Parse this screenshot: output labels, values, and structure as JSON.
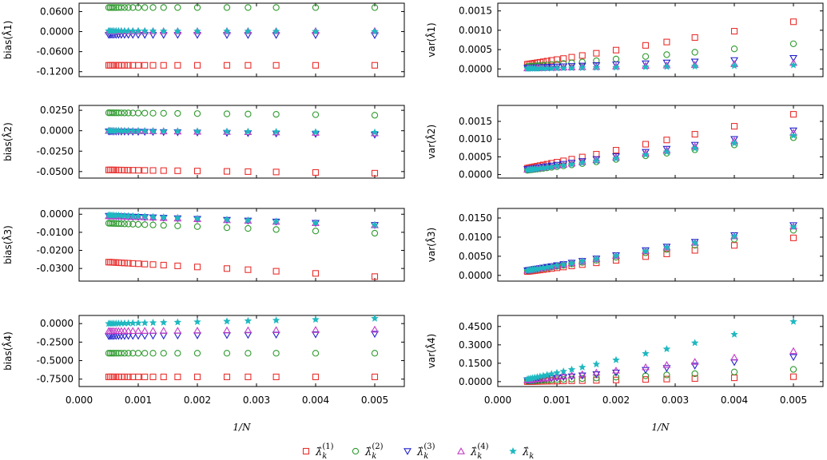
{
  "chart_data": {
    "type": "scatter",
    "xlabel": "1/N",
    "xlim": [
      0.0,
      0.0055
    ],
    "xticks": [
      "0.000",
      "0.001",
      "0.002",
      "0.003",
      "0.004",
      "0.005"
    ],
    "x": [
      0.0005,
      0.000526,
      0.000556,
      0.000588,
      0.000625,
      0.000667,
      0.000714,
      0.000769,
      0.000833,
      0.000909,
      0.001,
      0.001111,
      0.00125,
      0.001429,
      0.001667,
      0.002,
      0.0025,
      0.002857,
      0.003333,
      0.004,
      0.005
    ],
    "legend": [
      {
        "key": "m1",
        "label": "λ̂ k (1)",
        "color": "#e8312f",
        "marker": "square"
      },
      {
        "key": "m2",
        "label": "λ̂ k (2)",
        "color": "#2e9a2e",
        "marker": "circle"
      },
      {
        "key": "m3",
        "label": "λ̂ k (3)",
        "color": "#2222cc",
        "marker": "triangle-down"
      },
      {
        "key": "m4",
        "label": "λ̂ k (4)",
        "color": "#c43bc4",
        "marker": "triangle-up"
      },
      {
        "key": "m5",
        "label": "λ̂ k",
        "color": "#1fb8c0",
        "marker": "star"
      }
    ],
    "panels": [
      {
        "row": 0,
        "col": 0,
        "ylabel": "bias(λ̂1)",
        "ylim": [
          -0.135,
          0.085
        ],
        "yticks": [
          {
            "v": 0.06,
            "label": "0.0600"
          },
          {
            "v": 0.0,
            "label": "0.0000"
          },
          {
            "v": -0.06,
            "label": "-0.0600"
          },
          {
            "v": -0.12,
            "label": "-0.1200"
          }
        ],
        "series": {
          "m1": {
            "start": -0.101,
            "end": -0.101
          },
          "m2": {
            "start": 0.072,
            "end": 0.072
          },
          "m3": {
            "start": -0.01,
            "end": -0.011
          },
          "m4": {
            "start": 0.001,
            "end": 0.002
          },
          "m5": {
            "start": 0.002,
            "end": 0.0
          }
        }
      },
      {
        "row": 0,
        "col": 1,
        "ylabel": "var(λ̂1)",
        "ylim": [
          -0.0002,
          0.0017
        ],
        "yticks": [
          {
            "v": 0.0015,
            "label": "0.0015"
          },
          {
            "v": 0.001,
            "label": "0.0010"
          },
          {
            "v": 0.0005,
            "label": "0.0005"
          },
          {
            "v": 0.0,
            "label": "0.0000"
          }
        ],
        "series": {
          "m1": {
            "start": 0.00012,
            "end": 0.00122
          },
          "m2": {
            "start": 6e-05,
            "end": 0.00065
          },
          "m3": {
            "start": 3e-05,
            "end": 0.00028
          },
          "m4": {
            "start": 2e-05,
            "end": 0.00016
          },
          "m5": {
            "start": 1e-05,
            "end": 0.0001
          }
        }
      },
      {
        "row": 1,
        "col": 0,
        "ylabel": "bias(λ̂2)",
        "ylim": [
          -0.058,
          0.031
        ],
        "yticks": [
          {
            "v": 0.025,
            "label": "0.0250"
          },
          {
            "v": 0.0,
            "label": "0.0000"
          },
          {
            "v": -0.025,
            "label": "-0.0250"
          },
          {
            "v": -0.05,
            "label": "-0.0500"
          }
        ],
        "series": {
          "m1": {
            "start": -0.048,
            "end": -0.052
          },
          "m2": {
            "start": 0.022,
            "end": 0.019
          },
          "m3": {
            "start": -0.001,
            "end": -0.005
          },
          "m4": {
            "start": 0.0,
            "end": -0.003
          },
          "m5": {
            "start": 0.0,
            "end": -0.002
          }
        }
      },
      {
        "row": 1,
        "col": 1,
        "ylabel": "var(λ̂2)",
        "ylim": [
          -0.0001,
          0.00195
        ],
        "yticks": [
          {
            "v": 0.0015,
            "label": "0.0015"
          },
          {
            "v": 0.001,
            "label": "0.0010"
          },
          {
            "v": 0.0005,
            "label": "0.0005"
          },
          {
            "v": 0.0,
            "label": "0.0000"
          }
        ],
        "series": {
          "m1": {
            "start": 0.00018,
            "end": 0.0017
          },
          "m2": {
            "start": 0.00012,
            "end": 0.00104
          },
          "m3": {
            "start": 0.00015,
            "end": 0.00124
          },
          "m4": {
            "start": 0.00014,
            "end": 0.00118
          },
          "m5": {
            "start": 0.00013,
            "end": 0.0011
          }
        }
      },
      {
        "row": 2,
        "col": 0,
        "ylabel": "bias(λ̂3)",
        "ylim": [
          -0.037,
          0.0032
        ],
        "yticks": [
          {
            "v": 0.0,
            "label": "0.0000"
          },
          {
            "v": -0.01,
            "label": "-0.0100"
          },
          {
            "v": -0.02,
            "label": "-0.0200"
          },
          {
            "v": -0.03,
            "label": "-0.0300"
          }
        ],
        "series": {
          "m1": {
            "start": -0.0265,
            "end": -0.0345
          },
          "m2": {
            "start": -0.005,
            "end": -0.0105
          },
          "m3": {
            "start": -0.001,
            "end": -0.006
          },
          "m4": {
            "start": -0.001,
            "end": -0.006
          },
          "m5": {
            "start": -0.0005,
            "end": -0.006
          }
        }
      },
      {
        "row": 2,
        "col": 1,
        "ylabel": "var(λ̂3)",
        "ylim": [
          -0.0015,
          0.0175
        ],
        "yticks": [
          {
            "v": 0.015,
            "label": "0.0150"
          },
          {
            "v": 0.01,
            "label": "0.0100"
          },
          {
            "v": 0.005,
            "label": "0.0050"
          },
          {
            "v": 0.0,
            "label": "0.0000"
          }
        ],
        "series": {
          "m1": {
            "start": 0.001,
            "end": 0.0098
          },
          "m2": {
            "start": 0.0012,
            "end": 0.0118
          },
          "m3": {
            "start": 0.0013,
            "end": 0.0131
          },
          "m4": {
            "start": 0.0013,
            "end": 0.0128
          },
          "m5": {
            "start": 0.0013,
            "end": 0.0127
          }
        }
      },
      {
        "row": 3,
        "col": 0,
        "ylabel": "bias(λ̂4)",
        "ylim": [
          -0.85,
          0.11
        ],
        "yticks": [
          {
            "v": 0.0,
            "label": "0.0000"
          },
          {
            "v": -0.25,
            "label": "-0.2500"
          },
          {
            "v": -0.5,
            "label": "-0.5000"
          },
          {
            "v": -0.75,
            "label": "-0.7500"
          }
        ],
        "series": {
          "m1": {
            "start": -0.72,
            "end": -0.72
          },
          "m2": {
            "start": -0.4,
            "end": -0.4
          },
          "m3": {
            "start": -0.17,
            "end": -0.14
          },
          "m4": {
            "start": -0.1,
            "end": -0.08
          },
          "m5": {
            "start": 0.0,
            "end": 0.07
          }
        }
      },
      {
        "row": 3,
        "col": 1,
        "ylabel": "var(λ̂4)",
        "ylim": [
          -0.04,
          0.54
        ],
        "yticks": [
          {
            "v": 0.45,
            "label": "0.4500"
          },
          {
            "v": 0.3,
            "label": "0.3000"
          },
          {
            "v": 0.15,
            "label": "0.1500"
          },
          {
            "v": 0.0,
            "label": "0.0000"
          }
        ],
        "series": {
          "m1": {
            "start": 0.0,
            "end": 0.04
          },
          "m2": {
            "start": 0.005,
            "end": 0.1
          },
          "m3": {
            "start": 0.01,
            "end": 0.2
          },
          "m4": {
            "start": 0.012,
            "end": 0.25
          },
          "m5": {
            "start": 0.02,
            "end": 0.49
          }
        }
      }
    ]
  }
}
